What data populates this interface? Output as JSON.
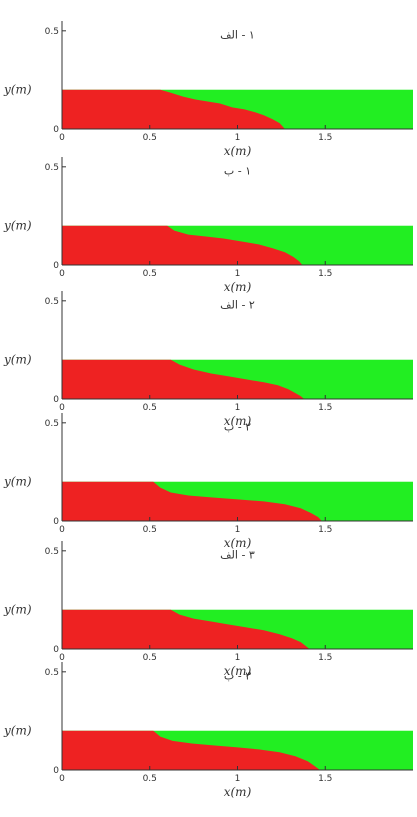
{
  "colors": {
    "fluid_a": "#ee2222",
    "fluid_b": "#22ee22",
    "axis": "#333333"
  },
  "chart_data": [
    {
      "type": "area",
      "title": "۱ - الف",
      "xlabel": "x(m)",
      "ylabel": "y(m)",
      "xlim": [
        0,
        2
      ],
      "ylim": [
        0,
        0.55
      ],
      "xticks": [
        "0",
        "0.5",
        "1",
        "1.5"
      ],
      "yticks": [
        "0",
        "0.5"
      ],
      "fill_height": 0.2,
      "interface": {
        "x": [
          0.56,
          0.62,
          0.69,
          0.76,
          0.83,
          0.9,
          0.97,
          1.04,
          1.1,
          1.15,
          1.2,
          1.24,
          1.27
        ],
        "y": [
          0.2,
          0.185,
          0.165,
          0.15,
          0.14,
          0.13,
          0.11,
          0.1,
          0.085,
          0.07,
          0.05,
          0.03,
          0.0
        ]
      }
    },
    {
      "type": "area",
      "title": "۱ - ب",
      "xlabel": "x(m)",
      "ylabel": "y(m)",
      "xlim": [
        0,
        2
      ],
      "ylim": [
        0,
        0.55
      ],
      "xticks": [
        "0",
        "0.5",
        "1",
        "1.5"
      ],
      "yticks": [
        "0",
        "0.5"
      ],
      "fill_height": 0.2,
      "interface": {
        "x": [
          0.6,
          0.64,
          0.72,
          0.82,
          0.92,
          1.02,
          1.12,
          1.2,
          1.27,
          1.32,
          1.35,
          1.37
        ],
        "y": [
          0.2,
          0.175,
          0.155,
          0.145,
          0.135,
          0.12,
          0.105,
          0.085,
          0.065,
          0.04,
          0.02,
          0.0
        ]
      }
    },
    {
      "type": "area",
      "title": "۲ - الف",
      "xlabel": "x(m)",
      "ylabel": "y(m)",
      "xlim": [
        0,
        2
      ],
      "ylim": [
        0,
        0.55
      ],
      "xticks": [
        "0",
        "0.5",
        "1",
        "1.5"
      ],
      "yticks": [
        "0",
        "0.5"
      ],
      "fill_height": 0.2,
      "interface": {
        "x": [
          0.62,
          0.67,
          0.75,
          0.85,
          0.95,
          1.05,
          1.15,
          1.23,
          1.29,
          1.33,
          1.36,
          1.38
        ],
        "y": [
          0.2,
          0.175,
          0.15,
          0.13,
          0.115,
          0.1,
          0.085,
          0.07,
          0.05,
          0.03,
          0.015,
          0.0
        ]
      }
    },
    {
      "type": "area",
      "title": "۲ - ب",
      "xlabel": "x(m)",
      "ylabel": "y(m)",
      "xlim": [
        0,
        2
      ],
      "ylim": [
        0,
        0.55
      ],
      "xticks": [
        "0",
        "0.5",
        "1",
        "1.5"
      ],
      "yticks": [
        "0",
        "0.5"
      ],
      "fill_height": 0.2,
      "interface": {
        "x": [
          0.52,
          0.56,
          0.62,
          0.72,
          0.85,
          1.0,
          1.15,
          1.27,
          1.36,
          1.42,
          1.46,
          1.48
        ],
        "y": [
          0.2,
          0.17,
          0.145,
          0.13,
          0.12,
          0.11,
          0.1,
          0.085,
          0.065,
          0.04,
          0.02,
          0.0
        ]
      }
    },
    {
      "type": "area",
      "title": "۳ - الف",
      "xlabel": "x(m)",
      "ylabel": "y(m)",
      "xlim": [
        0,
        2
      ],
      "ylim": [
        0,
        0.55
      ],
      "xticks": [
        "0",
        "0.5",
        "1",
        "1.5"
      ],
      "yticks": [
        "0",
        "0.5"
      ],
      "fill_height": 0.2,
      "interface": {
        "x": [
          0.62,
          0.67,
          0.75,
          0.85,
          0.95,
          1.05,
          1.15,
          1.24,
          1.31,
          1.36,
          1.39,
          1.41
        ],
        "y": [
          0.2,
          0.175,
          0.155,
          0.14,
          0.125,
          0.11,
          0.095,
          0.075,
          0.055,
          0.035,
          0.015,
          0.0
        ]
      }
    },
    {
      "type": "area",
      "title": "۳ - ب",
      "xlabel": "x(m)",
      "ylabel": "y(m)",
      "xlim": [
        0,
        2
      ],
      "ylim": [
        0,
        0.55
      ],
      "xticks": [
        "0",
        "0.5",
        "1",
        "1.5"
      ],
      "yticks": [
        "0",
        "0.5"
      ],
      "fill_height": 0.2,
      "interface": {
        "x": [
          0.52,
          0.56,
          0.63,
          0.74,
          0.87,
          1.0,
          1.12,
          1.24,
          1.33,
          1.4,
          1.44,
          1.47
        ],
        "y": [
          0.2,
          0.17,
          0.148,
          0.135,
          0.125,
          0.115,
          0.105,
          0.09,
          0.07,
          0.045,
          0.02,
          0.0
        ]
      }
    }
  ]
}
